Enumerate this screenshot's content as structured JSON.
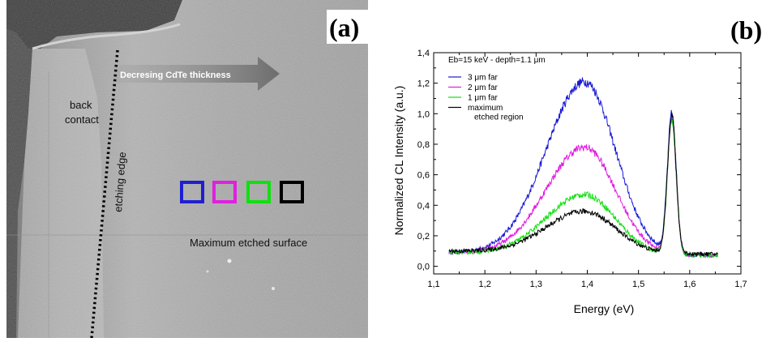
{
  "panel_a": {
    "panel_label": "(a)",
    "arrow_label": "Decresing CdTe thickness",
    "label_back_contact_1": "back",
    "label_back_contact_2": "contact",
    "label_etching_edge": "etching edge",
    "label_max_etched": "Maximum etched surface",
    "squares": [
      {
        "name": "blue-square",
        "color": "#1f1fd0"
      },
      {
        "name": "magenta-square",
        "color": "#e020e0"
      },
      {
        "name": "green-square",
        "color": "#10e010"
      },
      {
        "name": "black-square",
        "color": "#000000"
      }
    ]
  },
  "chart_data": {
    "type": "line",
    "panel_label": "(b)",
    "annotation": "Eb=15 keV - depth=1.1 μm",
    "xlabel": "Energy  (eV)",
    "ylabel": "Normalized CL Intensity  (a.u.)",
    "xlim": [
      1.1,
      1.7
    ],
    "ylim": [
      -0.05,
      1.4
    ],
    "xticks": [
      "1,1",
      "1,2",
      "1,3",
      "1,4",
      "1,5",
      "1,6",
      "1,7"
    ],
    "yticks": [
      "0,0",
      "0,2",
      "0,4",
      "0,6",
      "0,8",
      "1,0",
      "1,2",
      "1,4"
    ],
    "legend_position": "top-left",
    "series": [
      {
        "name": "3 μm far",
        "color": "#1a1ad6",
        "peak1": 1.22,
        "base": 0.09,
        "tail": 0.07,
        "peak2": 0.98
      },
      {
        "name": "2 μm far",
        "color": "#e01ee0",
        "peak1": 0.79,
        "base": 0.09,
        "tail": 0.07,
        "peak2": 0.95
      },
      {
        "name": "1 μm far",
        "color": "#12e012",
        "peak1": 0.48,
        "base": 0.09,
        "tail": 0.07,
        "peak2": 0.96
      },
      {
        "name": "maximum",
        "name_line2": "etched region",
        "color": "#000000",
        "peak1": 0.37,
        "base": 0.1,
        "tail": 0.08,
        "peak2": 0.99
      }
    ],
    "peak1_center": 1.395,
    "peak2_center": 1.565,
    "x_start": 1.13,
    "x_end": 1.655
  }
}
